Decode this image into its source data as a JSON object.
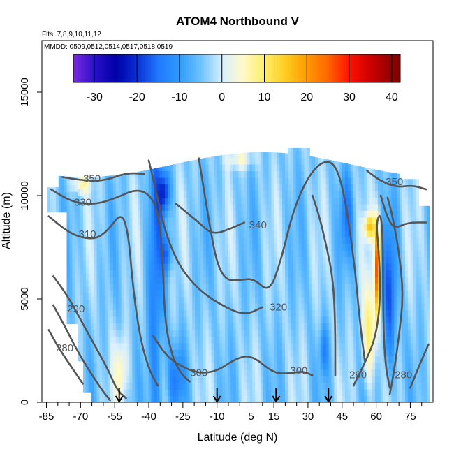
{
  "chart_data": {
    "type": "heatmap",
    "title": "ATOM4 Northbound V",
    "subtitle_flights": "Flts: 7,8,9,10,11,12",
    "subtitle_dates": "MMDD: 0509,0512,0514,0517,0518,0519",
    "xlabel": "Latitude (deg N)",
    "ylabel": "Altitude (m)",
    "xlim": [
      -87,
      85
    ],
    "ylim": [
      0,
      17500
    ],
    "x_ticks": [
      -85,
      -70,
      -55,
      -40,
      -25,
      -10,
      5,
      15,
      30,
      45,
      60,
      75
    ],
    "x_minor_ticks": [
      -80,
      -75,
      -65,
      -60,
      -50,
      -45,
      -35,
      -30,
      -20,
      -15,
      -5,
      0,
      10,
      20,
      25,
      35,
      40,
      50,
      55,
      65,
      70,
      80
    ],
    "y_ticks": [
      0,
      5000,
      10000,
      15000
    ],
    "colorbar": {
      "label_values": [
        -30,
        -20,
        -10,
        0,
        10,
        20,
        30,
        40
      ],
      "range": [
        -35,
        42
      ],
      "stops": [
        {
          "v": -35,
          "c": "#7a2be0"
        },
        {
          "v": -30,
          "c": "#2a0fc8"
        },
        {
          "v": -25,
          "c": "#0000a8"
        },
        {
          "v": -20,
          "c": "#0a2fd4"
        },
        {
          "v": -15,
          "c": "#1f78ff"
        },
        {
          "v": -10,
          "c": "#2f9bff"
        },
        {
          "v": -5,
          "c": "#6cc2ff"
        },
        {
          "v": 0,
          "c": "#d8f0ff"
        },
        {
          "v": 5,
          "c": "#fff9c8"
        },
        {
          "v": 10,
          "c": "#ffee66"
        },
        {
          "v": 15,
          "c": "#ffcc22"
        },
        {
          "v": 20,
          "c": "#ff9900"
        },
        {
          "v": 25,
          "c": "#ff6600"
        },
        {
          "v": 30,
          "c": "#ff1100"
        },
        {
          "v": 35,
          "c": "#cc0000"
        },
        {
          "v": 42,
          "c": "#7a0000"
        }
      ]
    },
    "contour_labels": [
      {
        "text": "350",
        "lat": -65,
        "alt": 10800
      },
      {
        "text": "330",
        "lat": -69,
        "alt": 9650
      },
      {
        "text": "310",
        "lat": -67,
        "alt": 8100
      },
      {
        "text": "340",
        "lat": 8,
        "alt": 8550
      },
      {
        "text": "320",
        "lat": 17,
        "alt": 4580
      },
      {
        "text": "290",
        "lat": -72,
        "alt": 4500
      },
      {
        "text": "280",
        "lat": -77,
        "alt": 2600
      },
      {
        "text": "300",
        "lat": -18,
        "alt": 1400
      },
      {
        "text": "300",
        "lat": 26,
        "alt": 1500
      },
      {
        "text": "290",
        "lat": 52,
        "alt": 1300
      },
      {
        "text": "280",
        "lat": 72,
        "alt": 1300
      },
      {
        "text": "350",
        "lat": 68,
        "alt": 10650
      }
    ],
    "contours": [
      {
        "level": 350,
        "points": [
          [
            -78,
            10900
          ],
          [
            -70,
            10750
          ],
          [
            -60,
            10700
          ],
          [
            -50,
            11100
          ],
          [
            -42,
            11050
          ]
        ]
      },
      {
        "level": 330,
        "points": [
          [
            -83,
            10300
          ],
          [
            -74,
            9700
          ],
          [
            -64,
            9550
          ],
          [
            -54,
            9900
          ],
          [
            -46,
            10300
          ],
          [
            -40,
            10100
          ],
          [
            -36,
            9300
          ],
          [
            -34,
            7200
          ],
          [
            -33,
            4000
          ],
          [
            -30,
            2300
          ],
          [
            -26,
            1400
          ],
          [
            -22,
            1000
          ]
        ]
      },
      {
        "level": 310,
        "points": [
          [
            -84,
            9000
          ],
          [
            -74,
            8100
          ],
          [
            -64,
            7850
          ],
          [
            -58,
            8300
          ],
          [
            -52,
            9200
          ],
          [
            -49,
            8200
          ],
          [
            -47,
            5600
          ],
          [
            -44,
            3200
          ],
          [
            -40,
            1600
          ],
          [
            -36,
            800
          ]
        ]
      },
      {
        "level": 340,
        "points": [
          [
            -28,
            9600
          ],
          [
            -18,
            8700
          ],
          [
            -12,
            8100
          ],
          [
            -4,
            8400
          ],
          [
            2,
            8700
          ]
        ]
      },
      {
        "level": 340,
        "points": [
          [
            -18,
            11800
          ],
          [
            -13,
            8400
          ],
          [
            -10,
            6700
          ],
          [
            -6,
            5900
          ],
          [
            0,
            5900
          ],
          [
            6,
            6000
          ],
          [
            13,
            5300
          ],
          [
            18,
            6800
          ],
          [
            24,
            9500
          ],
          [
            32,
            11300
          ],
          [
            40,
            11800
          ],
          [
            45,
            10700
          ],
          [
            50,
            7200
          ],
          [
            53,
            3700
          ],
          [
            55,
            2000
          ]
        ]
      },
      {
        "level": 320,
        "points": [
          [
            -40,
            11700
          ],
          [
            -37,
            10300
          ],
          [
            -34,
            8800
          ],
          [
            -31,
            7700
          ],
          [
            -26,
            6500
          ],
          [
            -20,
            5700
          ],
          [
            -15,
            5200
          ],
          [
            -8,
            4700
          ],
          [
            2,
            4200
          ],
          [
            10,
            4600
          ]
        ]
      },
      {
        "level": 320,
        "points": [
          [
            32,
            10000
          ],
          [
            35,
            9000
          ],
          [
            38,
            7600
          ],
          [
            41,
            6000
          ],
          [
            42,
            3800
          ],
          [
            42,
            1300
          ]
        ]
      },
      {
        "level": 300,
        "points": [
          [
            -38,
            3200
          ],
          [
            -32,
            2200
          ],
          [
            -25,
            1700
          ],
          [
            -18,
            1400
          ],
          [
            -10,
            1500
          ],
          [
            -2,
            2100
          ],
          [
            5,
            2300
          ],
          [
            15,
            1400
          ],
          [
            22,
            1400
          ],
          [
            28,
            1500
          ],
          [
            32,
            1300
          ]
        ]
      },
      {
        "level": 300,
        "points": [
          [
            -82,
            6100
          ],
          [
            -76,
            5200
          ],
          [
            -70,
            4000
          ],
          [
            -64,
            2800
          ],
          [
            -58,
            1600
          ],
          [
            -54,
            600
          ],
          [
            -50,
            200
          ]
        ]
      },
      {
        "level": 290,
        "points": [
          [
            -82,
            4700
          ],
          [
            -77,
            3700
          ],
          [
            -72,
            2600
          ],
          [
            -66,
            1500
          ],
          [
            -60,
            500
          ],
          [
            -57,
            100
          ]
        ]
      },
      {
        "level": 280,
        "points": [
          [
            -84,
            3500
          ],
          [
            -80,
            2700
          ],
          [
            -74,
            1700
          ],
          [
            -69,
            900
          ]
        ]
      },
      {
        "level": 290,
        "points": [
          [
            50,
            800
          ],
          [
            55,
            1900
          ],
          [
            60,
            3200
          ],
          [
            62,
            5200
          ],
          [
            61,
            7500
          ],
          [
            60,
            8700
          ],
          [
            62,
            9200
          ],
          [
            63,
            7800
          ],
          [
            63,
            4200
          ],
          [
            64,
            1800
          ],
          [
            66,
            700
          ]
        ]
      },
      {
        "level": 280,
        "points": [
          [
            66,
            400
          ],
          [
            68,
            1600
          ],
          [
            70,
            3200
          ],
          [
            72,
            5200
          ],
          [
            70,
            7300
          ],
          [
            67,
            9100
          ],
          [
            65,
            9900
          ]
        ]
      },
      {
        "level": 280,
        "points": [
          [
            75,
            700
          ],
          [
            79,
            1800
          ],
          [
            83,
            2800
          ]
        ]
      },
      {
        "level": 350,
        "points": [
          [
            56,
            11200
          ],
          [
            62,
            10700
          ],
          [
            69,
            10400
          ],
          [
            76,
            10500
          ],
          [
            82,
            10300
          ]
        ]
      },
      {
        "level": 340,
        "points": [
          [
            62,
            10000
          ],
          [
            65,
            8900
          ],
          [
            68,
            8400
          ],
          [
            74,
            8700
          ],
          [
            82,
            8700
          ]
        ]
      }
    ],
    "flight_arrows_lat": [
      -53,
      -10,
      16,
      39
    ]
  }
}
